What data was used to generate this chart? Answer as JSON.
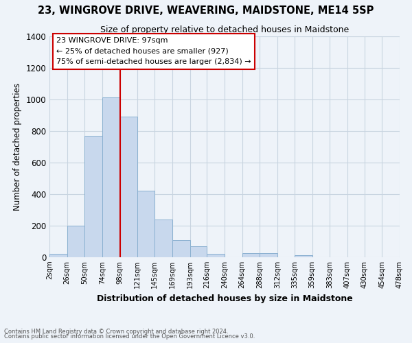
{
  "title": "23, WINGROVE DRIVE, WEAVERING, MAIDSTONE, ME14 5SP",
  "subtitle": "Size of property relative to detached houses in Maidstone",
  "xlabel": "Distribution of detached houses by size in Maidstone",
  "ylabel": "Number of detached properties",
  "bar_edges": [
    2,
    26,
    50,
    74,
    98,
    121,
    145,
    169,
    193,
    216,
    240,
    264,
    288,
    312,
    335,
    359,
    383,
    407,
    430,
    454,
    478
  ],
  "bar_heights": [
    20,
    200,
    770,
    1010,
    890,
    420,
    240,
    110,
    70,
    20,
    0,
    25,
    25,
    0,
    15,
    0,
    0,
    0,
    0,
    0
  ],
  "bar_color": "#c8d8ed",
  "bar_edgecolor": "#8ab0d0",
  "ylim": [
    0,
    1400
  ],
  "yticks": [
    0,
    200,
    400,
    600,
    800,
    1000,
    1200,
    1400
  ],
  "xtick_labels": [
    "2sqm",
    "26sqm",
    "50sqm",
    "74sqm",
    "98sqm",
    "121sqm",
    "145sqm",
    "169sqm",
    "193sqm",
    "216sqm",
    "240sqm",
    "264sqm",
    "288sqm",
    "312sqm",
    "335sqm",
    "359sqm",
    "383sqm",
    "407sqm",
    "430sqm",
    "454sqm",
    "478sqm"
  ],
  "vline_x": 98,
  "vline_color": "#cc0000",
  "annotation_title": "23 WINGROVE DRIVE: 97sqm",
  "annotation_line1": "← 25% of detached houses are smaller (927)",
  "annotation_line2": "75% of semi-detached houses are larger (2,834) →",
  "footer_line1": "Contains HM Land Registry data © Crown copyright and database right 2024.",
  "footer_line2": "Contains public sector information licensed under the Open Government Licence v3.0.",
  "grid_color": "#c8d4e0",
  "background_color": "#eef3f9"
}
